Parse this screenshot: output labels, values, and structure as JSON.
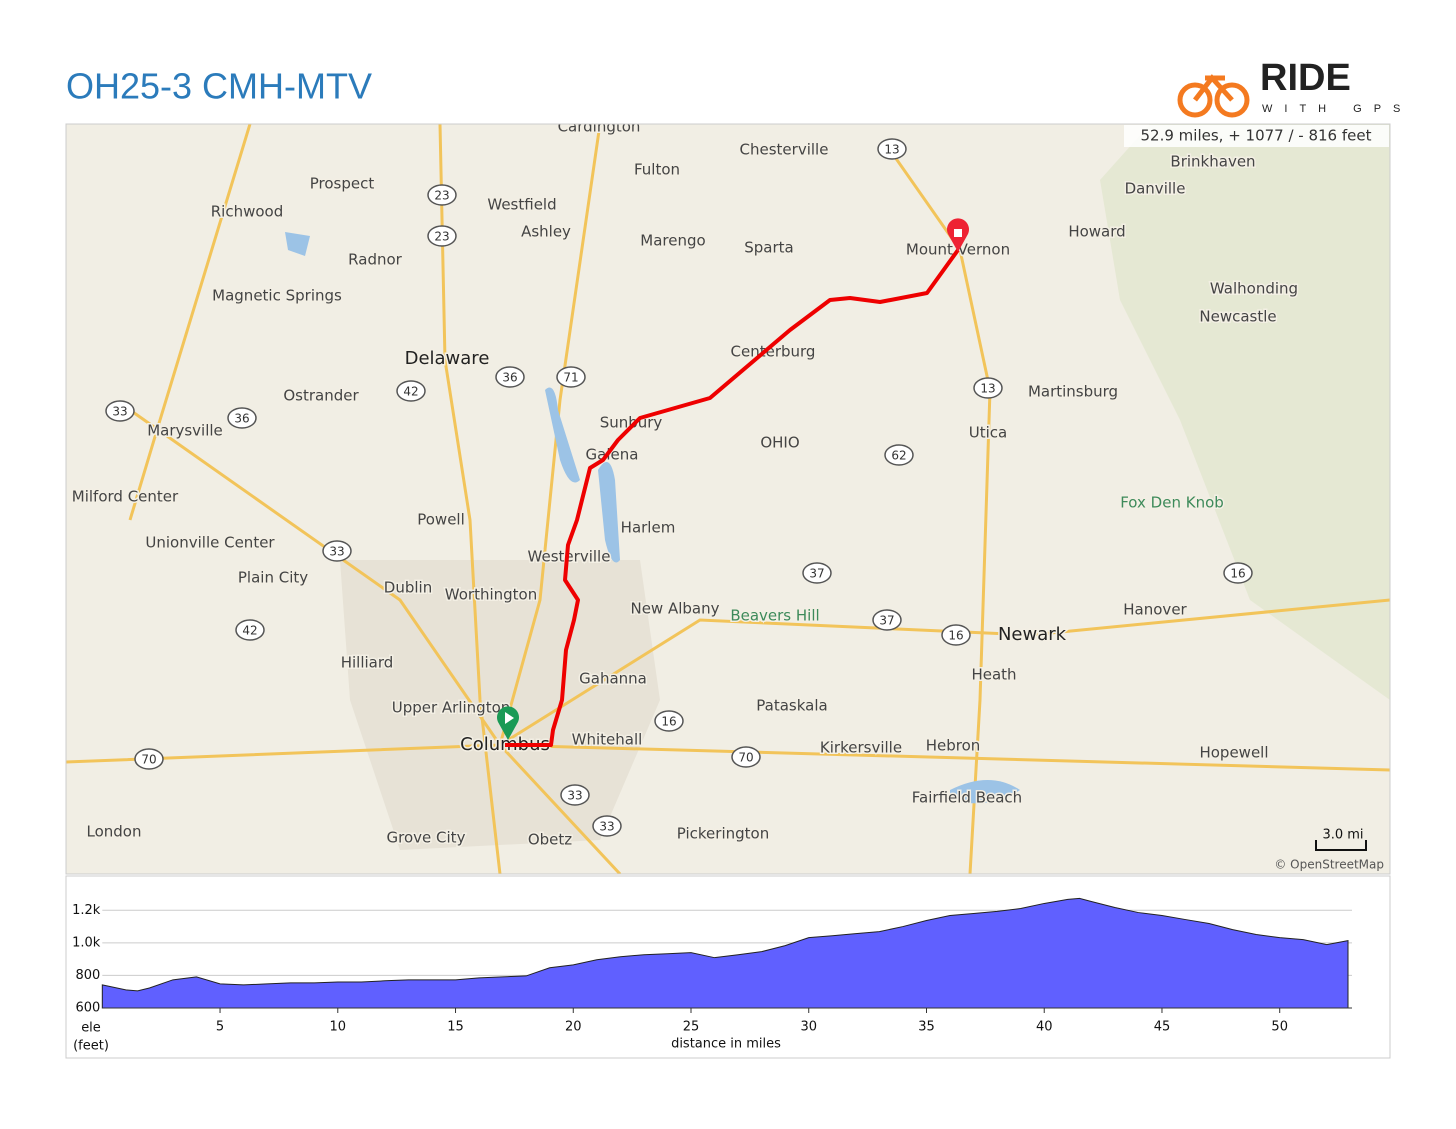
{
  "header": {
    "title": "OH25-3 CMH-MTV",
    "logo": {
      "word": "RIDE",
      "tag": "WITH GPS"
    }
  },
  "map": {
    "stats": "52.9 miles, + 1077 / - 816 feet",
    "scale": "3.0 mi",
    "attribution": "© OpenStreetMap",
    "labels": [
      "Cardington",
      "Fulton",
      "Chesterville",
      "Brinkhaven",
      "Danville",
      "Prospect",
      "Westfield",
      "Richwood",
      "Ashley",
      "Marengo",
      "Sparta",
      "Mount Vernon",
      "Howard",
      "Radnor",
      "Magnetic Springs",
      "Walhonding",
      "Newcastle",
      "Delaware",
      "Centerburg",
      "Ostrander",
      "Martinsburg",
      "Marysville",
      "Sunbury",
      "Utica",
      "OHIO",
      "Galena",
      "Milford Center",
      "Fox Den Knob",
      "Powell",
      "Harlem",
      "Unionville Center",
      "Westerville",
      "Plain City",
      "Dublin",
      "Worthington",
      "New Albany",
      "Beavers Hill",
      "Hanover",
      "Newark",
      "Hilliard",
      "Gahanna",
      "Heath",
      "Upper Arlington",
      "Pataskala",
      "Whitehall",
      "Columbus",
      "Kirkersville",
      "Hebron",
      "Hopewell",
      "Fairfield Beach",
      "London",
      "Grove City",
      "Obetz",
      "Pickerington"
    ],
    "shields": [
      "23",
      "23",
      "13",
      "36",
      "71",
      "42",
      "33",
      "36",
      "13",
      "62",
      "33",
      "37",
      "37",
      "16",
      "42",
      "16",
      "16",
      "70",
      "70",
      "33",
      "33"
    ]
  },
  "chart_data": {
    "type": "area",
    "color": "#6060ff",
    "x": [
      0,
      1,
      1.5,
      2,
      3,
      4,
      5,
      6,
      7,
      8,
      9,
      10,
      11,
      12,
      13,
      14,
      15,
      16,
      17,
      18,
      19,
      20,
      21,
      22,
      23,
      24,
      25,
      26,
      27,
      28,
      29,
      30,
      31,
      32,
      33,
      34,
      35,
      36,
      37,
      38,
      39,
      40,
      41,
      41.5,
      42,
      43,
      44,
      45,
      46,
      47,
      48,
      49,
      50,
      51,
      52,
      52.9
    ],
    "values": [
      742,
      711,
      705,
      723,
      773,
      791,
      748,
      742,
      748,
      754,
      754,
      760,
      760,
      767,
      773,
      773,
      773,
      785,
      791,
      797,
      847,
      865,
      896,
      915,
      927,
      933,
      940,
      909,
      927,
      946,
      983,
      1032,
      1044,
      1057,
      1069,
      1100,
      1137,
      1168,
      1180,
      1193,
      1211,
      1242,
      1267,
      1273,
      1254,
      1217,
      1186,
      1168,
      1143,
      1119,
      1081,
      1051,
      1032,
      1020,
      989,
      1014
    ],
    "xlim": [
      0,
      52.9
    ],
    "ylim": [
      600,
      1300
    ],
    "xticks": [
      5,
      10,
      15,
      20,
      25,
      30,
      35,
      40,
      45,
      50
    ],
    "yticks": [
      600,
      800,
      {
        "value": 1000,
        "label": "1.0k"
      },
      {
        "value": 1200,
        "label": "1.2k"
      }
    ],
    "x_label": "distance in miles",
    "y_label": [
      "ele",
      "(feet)"
    ],
    "grid": true
  }
}
